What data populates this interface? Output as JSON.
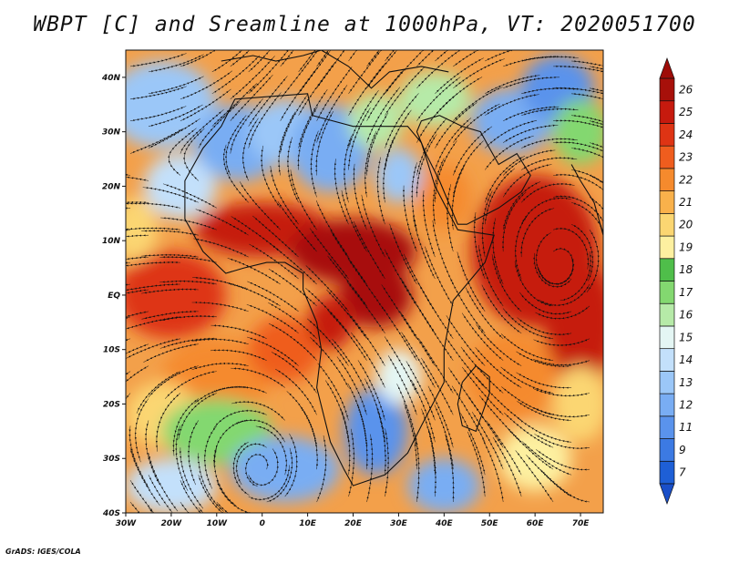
{
  "title": "WBPT [C] and Sreamline at 1000hPa, VT: 2020051700",
  "credit": "GrADS: IGES/COLA",
  "map": {
    "lat_ticks": [
      "40N",
      "30N",
      "20N",
      "10N",
      "EQ",
      "10S",
      "20S",
      "30S",
      "40S"
    ],
    "lon_ticks": [
      "30W",
      "20W",
      "10W",
      "0",
      "10E",
      "20E",
      "30E",
      "40E",
      "50E",
      "60E",
      "70E"
    ],
    "lon_range": [
      -30,
      75
    ],
    "lat_range": [
      -40,
      45
    ]
  },
  "colorbar": {
    "labels": [
      "7",
      "9",
      "11",
      "12",
      "13",
      "14",
      "15",
      "16",
      "17",
      "18",
      "19",
      "20",
      "21",
      "22",
      "23",
      "24",
      "25",
      "26"
    ],
    "colors": [
      "#1e5fd6",
      "#3c7ae3",
      "#5a93ec",
      "#79adf3",
      "#9bc7f8",
      "#c3e0fb",
      "#e4f6f4",
      "#b6eaa8",
      "#83d870",
      "#4fbe4a",
      "#fdf0a0",
      "#fbd672",
      "#f9b14b",
      "#f58a2d",
      "#ef5d1e",
      "#de3414",
      "#c61a0e",
      "#a7100a"
    ],
    "low_arrow_color": "#1a4fc8",
    "high_arrow_color": "#9e0c08"
  }
}
